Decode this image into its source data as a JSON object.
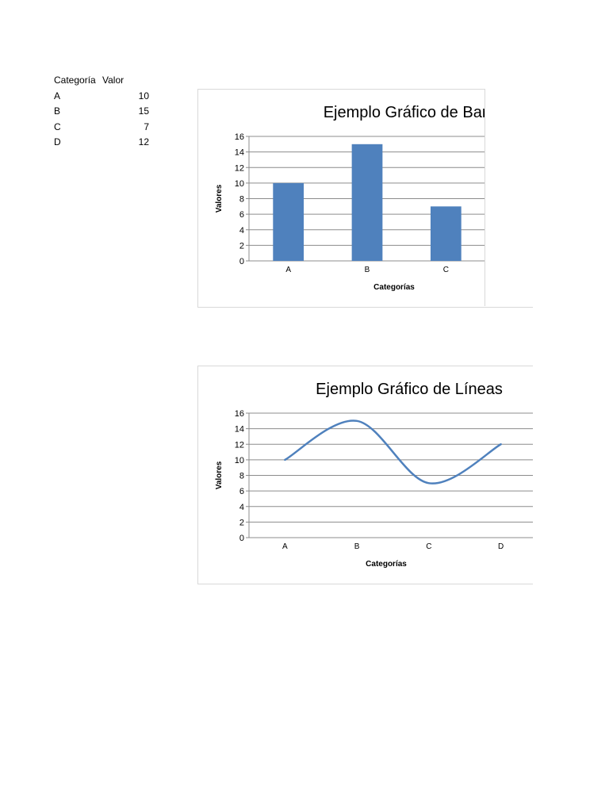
{
  "table": {
    "headers": [
      "Categoría",
      "Valor"
    ],
    "rows": [
      {
        "category": "A",
        "value": "10"
      },
      {
        "category": "B",
        "value": "15"
      },
      {
        "category": "C",
        "value": "7"
      },
      {
        "category": "D",
        "value": "12"
      }
    ]
  },
  "chart_data": [
    {
      "type": "bar",
      "title": "Ejemplo Gráfico de Barras",
      "categories": [
        "A",
        "B",
        "C"
      ],
      "values": [
        10,
        15,
        7
      ],
      "xlabel": "Categorías",
      "ylabel": "Valores",
      "ylim": [
        0,
        16
      ],
      "yticks": [
        "0",
        "2",
        "4",
        "6",
        "8",
        "10",
        "12",
        "14",
        "16"
      ],
      "grid": true,
      "color": "#4f81bd"
    },
    {
      "type": "line",
      "title": "Ejemplo Gráfico de Líneas",
      "categories": [
        "A",
        "B",
        "C",
        "D"
      ],
      "values": [
        10,
        15,
        7,
        12
      ],
      "smooth": true,
      "xlabel": "Categorías",
      "ylabel": "Valores",
      "ylim": [
        0,
        16
      ],
      "yticks": [
        "0",
        "2",
        "4",
        "6",
        "8",
        "10",
        "12",
        "14",
        "16"
      ],
      "grid": true,
      "color": "#4f81bd"
    }
  ]
}
